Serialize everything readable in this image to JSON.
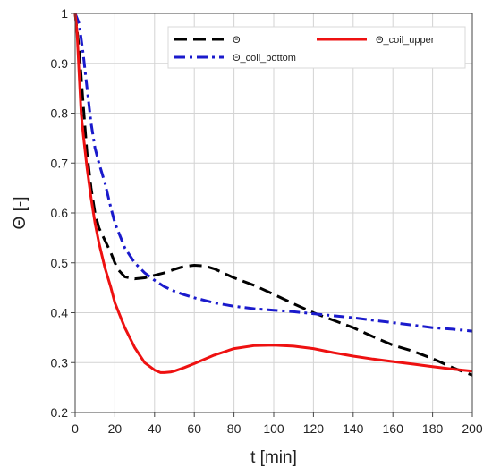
{
  "chart_data": {
    "type": "line",
    "xlabel": "t [min]",
    "ylabel": "Θ [-]",
    "xlim": [
      0,
      200
    ],
    "ylim": [
      0.2,
      1
    ],
    "xticks": [
      0,
      20,
      40,
      60,
      80,
      100,
      120,
      140,
      160,
      180,
      200
    ],
    "yticks": [
      0.2,
      0.3,
      0.4,
      0.5,
      0.6,
      0.7,
      0.8,
      0.9,
      1
    ],
    "grid": true,
    "legend_position": "top-right",
    "series": [
      {
        "name": "Θ",
        "color": "#000000",
        "style": "dashed",
        "x": [
          0,
          2,
          4,
          6,
          8,
          10,
          12,
          15,
          18,
          20,
          22,
          25,
          30,
          35,
          40,
          45,
          50,
          55,
          60,
          65,
          70,
          80,
          90,
          100,
          110,
          120,
          130,
          140,
          150,
          160,
          170,
          180,
          190,
          200
        ],
        "y": [
          1.0,
          0.93,
          0.82,
          0.72,
          0.65,
          0.6,
          0.57,
          0.545,
          0.52,
          0.5,
          0.485,
          0.472,
          0.468,
          0.47,
          0.475,
          0.48,
          0.487,
          0.493,
          0.495,
          0.494,
          0.488,
          0.47,
          0.455,
          0.437,
          0.418,
          0.4,
          0.385,
          0.37,
          0.352,
          0.335,
          0.323,
          0.308,
          0.29,
          0.275
        ]
      },
      {
        "name": "Θ_coil_upper",
        "color": "#ee1111",
        "style": "solid",
        "x": [
          0,
          1,
          2,
          3,
          4,
          6,
          8,
          10,
          12,
          15,
          18,
          20,
          25,
          30,
          35,
          40,
          43,
          45,
          48,
          50,
          55,
          60,
          70,
          80,
          90,
          100,
          110,
          120,
          130,
          140,
          150,
          160,
          170,
          180,
          190,
          200
        ],
        "y": [
          1.0,
          0.96,
          0.88,
          0.8,
          0.76,
          0.69,
          0.63,
          0.58,
          0.54,
          0.49,
          0.45,
          0.42,
          0.37,
          0.33,
          0.3,
          0.285,
          0.28,
          0.28,
          0.281,
          0.283,
          0.29,
          0.298,
          0.315,
          0.328,
          0.334,
          0.335,
          0.333,
          0.328,
          0.32,
          0.313,
          0.307,
          0.302,
          0.297,
          0.292,
          0.287,
          0.283
        ]
      },
      {
        "name": "Θ_coil_bottom",
        "color": "#1a1acc",
        "style": "dashdot",
        "x": [
          0,
          2,
          4,
          6,
          8,
          10,
          12,
          15,
          18,
          20,
          25,
          30,
          35,
          40,
          45,
          50,
          55,
          60,
          65,
          70,
          80,
          90,
          100,
          110,
          120,
          130,
          140,
          150,
          160,
          170,
          180,
          190,
          200
        ],
        "y": [
          1.0,
          0.98,
          0.92,
          0.85,
          0.78,
          0.73,
          0.7,
          0.66,
          0.61,
          0.58,
          0.53,
          0.5,
          0.48,
          0.465,
          0.452,
          0.443,
          0.436,
          0.43,
          0.425,
          0.42,
          0.413,
          0.408,
          0.405,
          0.402,
          0.398,
          0.394,
          0.39,
          0.385,
          0.38,
          0.375,
          0.37,
          0.367,
          0.363
        ]
      }
    ]
  }
}
